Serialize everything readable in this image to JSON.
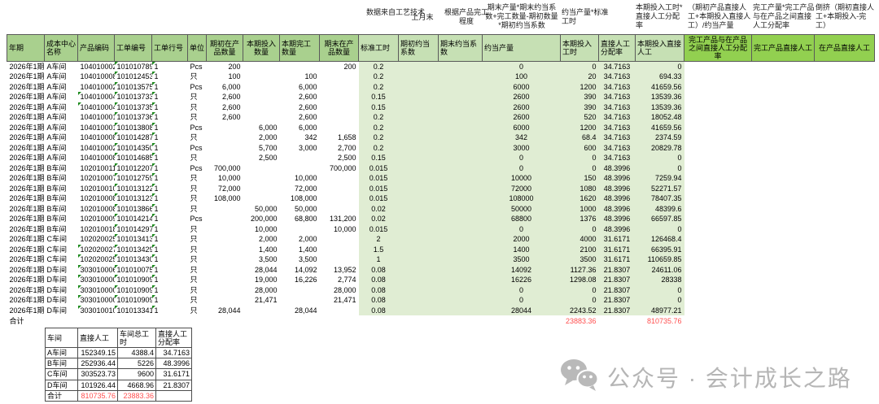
{
  "annotations": [
    "数据来自工艺技术",
    "上月末",
    "根据产品完工程度",
    "期末产量*期末约当系数+完工数量-期初数量*期初约当系数",
    "约当产量*标准工时",
    "本期投入工时*直接人工分配率",
    "（期初产品直接人工+本期投入直接人工）/约当产量",
    "完工产量*完工产品与在产品之间直接人工分配率",
    "倒挤（期初直接人工+本期投入-完工）"
  ],
  "colors": {
    "header_green": "#A9D08E",
    "header_light_green": "#C6E0B4",
    "header_bright_green": "#92D050",
    "data_area_green": "#E0EDD3",
    "total_red": "#FF5050",
    "watermark_gray": "#B5B5B5"
  },
  "main": {
    "headers": [
      "年期",
      "成本中心名称",
      "产品编码",
      "工单编号",
      "工单行号",
      "单位",
      "期初在产品数量",
      "本期投入数量",
      "本期完工数量",
      "期末在产品数量",
      "标准工时",
      "期初约当系数",
      "期末约当系数",
      "约当产量",
      "本期投入工时",
      "直接人工分配率",
      "本期投入直接人工",
      "完工产品与在产品之间直接人工分配率",
      "完工产品直接人工",
      "在产品直接人工"
    ],
    "rows": [
      [
        "2026年1期",
        "A车间",
        "104010002",
        "101010789",
        "1",
        "Pcs",
        "200",
        "",
        "",
        "200",
        "0.2",
        "",
        "",
        "0",
        "0",
        "34.7163",
        "0",
        "",
        "",
        ""
      ],
      [
        "2026年1期",
        "A车间",
        "104010008",
        "101012453",
        "1",
        "只",
        "100",
        "",
        "100",
        "",
        "0.2",
        "",
        "",
        "100",
        "20",
        "34.7163",
        "694.33",
        "",
        "",
        ""
      ],
      [
        "2026年1期",
        "A车间",
        "104010002",
        "101013575",
        "1",
        "Pcs",
        "6,000",
        "",
        "6,000",
        "",
        "0.2",
        "",
        "",
        "6000",
        "1200",
        "34.7163",
        "41659.56",
        "",
        "",
        ""
      ],
      [
        "2026年1期",
        "A车间",
        "104010004",
        "101013733",
        "1",
        "只",
        "2,600",
        "",
        "2,600",
        "",
        "0.15",
        "",
        "",
        "2600",
        "390",
        "34.7163",
        "13539.36",
        "",
        "",
        ""
      ],
      [
        "2026年1期",
        "A车间",
        "104010004",
        "101013735",
        "1",
        "只",
        "2,600",
        "",
        "2,600",
        "",
        "0.15",
        "",
        "",
        "2600",
        "390",
        "34.7163",
        "13539.36",
        "",
        "",
        ""
      ],
      [
        "2026年1期",
        "A车间",
        "104010001",
        "101013736",
        "1",
        "只",
        "2,600",
        "",
        "2,600",
        "",
        "0.2",
        "",
        "",
        "2600",
        "520",
        "34.7163",
        "18052.48",
        "",
        "",
        ""
      ],
      [
        "2026年1期",
        "A车间",
        "104010001",
        "101013808",
        "1",
        "Pcs",
        "",
        "6,000",
        "6,000",
        "",
        "0.2",
        "",
        "",
        "6000",
        "1200",
        "34.7163",
        "41659.56",
        "",
        "",
        ""
      ],
      [
        "2026年1期",
        "A车间",
        "104010008",
        "101014287",
        "1",
        "只",
        "",
        "2,000",
        "342",
        "1,658",
        "0.2",
        "",
        "",
        "342",
        "68.4",
        "34.7163",
        "2374.59",
        "",
        "",
        ""
      ],
      [
        "2026年1期",
        "A车间",
        "104010002",
        "101014350",
        "1",
        "Pcs",
        "",
        "5,700",
        "3,000",
        "2,700",
        "0.2",
        "",
        "",
        "3000",
        "600",
        "34.7163",
        "20829.78",
        "",
        "",
        ""
      ],
      [
        "2026年1期",
        "A车间",
        "104010008",
        "101014685",
        "1",
        "只",
        "",
        "2,500",
        "",
        "2,500",
        "0.15",
        "",
        "",
        "0",
        "0",
        "34.7163",
        "0",
        "",
        "",
        ""
      ],
      [
        "2026年1期",
        "B车间",
        "102010011",
        "101012207",
        "1",
        "Pcs",
        "700,000",
        "",
        "",
        "700,000",
        "0.015",
        "",
        "",
        "0",
        "0",
        "48.3996",
        "0",
        "",
        "",
        ""
      ],
      [
        "2026年1期",
        "B车间",
        "102010007",
        "101012759",
        "1",
        "只",
        "10,000",
        "",
        "10,000",
        "",
        "0.015",
        "",
        "",
        "10000",
        "150",
        "48.3996",
        "7259.94",
        "",
        "",
        ""
      ],
      [
        "2026年1期",
        "B车间",
        "102010010",
        "101013122",
        "1",
        "只",
        "72,000",
        "",
        "72,000",
        "",
        "0.015",
        "",
        "",
        "72000",
        "1080",
        "48.3996",
        "52271.57",
        "",
        "",
        ""
      ],
      [
        "2026年1期",
        "B车间",
        "102010008",
        "101013123",
        "1",
        "只",
        "108,000",
        "",
        "108,000",
        "",
        "0.015",
        "",
        "",
        "108000",
        "1620",
        "48.3996",
        "78407.35",
        "",
        "",
        ""
      ],
      [
        "2026年1期",
        "B车间",
        "102010008",
        "101013866",
        "1",
        "只",
        "",
        "50,000",
        "50,000",
        "",
        "0.02",
        "",
        "",
        "50000",
        "1000",
        "48.3996",
        "48399.6",
        "",
        "",
        ""
      ],
      [
        "2026年1期",
        "B车间",
        "102010009",
        "101014214",
        "1",
        "Pcs",
        "",
        "200,000",
        "68,800",
        "131,200",
        "0.02",
        "",
        "",
        "68800",
        "1376",
        "48.3996",
        "66597.85",
        "",
        "",
        ""
      ],
      [
        "2026年1期",
        "B车间",
        "102010018",
        "101014297",
        "1",
        "只",
        "",
        "10,000",
        "",
        "10,000",
        "0.015",
        "",
        "",
        "0",
        "0",
        "48.3996",
        "0",
        "",
        "",
        ""
      ],
      [
        "2026年1期",
        "C车间",
        "102020025",
        "101013413",
        "1",
        "只",
        "",
        "2,000",
        "2,000",
        "",
        "2",
        "",
        "",
        "2000",
        "4000",
        "31.6171",
        "126468.4",
        "",
        "",
        ""
      ],
      [
        "2026年1期",
        "C车间",
        "102020027",
        "101013429",
        "1",
        "只",
        "",
        "1,400",
        "1,400",
        "",
        "1.5",
        "",
        "",
        "1400",
        "2100",
        "31.6171",
        "66395.91",
        "",
        "",
        ""
      ],
      [
        "2026年1期",
        "C车间",
        "102020025",
        "101013430",
        "1",
        "只",
        "",
        "3,500",
        "3,500",
        "",
        "1",
        "",
        "",
        "3500",
        "3500",
        "31.6171",
        "110659.85",
        "",
        "",
        ""
      ],
      [
        "2026年1期",
        "D车间",
        "303010006",
        "101010075",
        "1",
        "只",
        "",
        "28,044",
        "14,092",
        "13,952",
        "0.08",
        "",
        "",
        "14092",
        "1127.36",
        "21.8307",
        "24611.06",
        "",
        "",
        ""
      ],
      [
        "2026年1期",
        "D车间",
        "303010000",
        "101010909",
        "1",
        "只",
        "",
        "19,000",
        "16,226",
        "2,774",
        "0.08",
        "",
        "",
        "16226",
        "1298.08",
        "21.8307",
        "28338",
        "",
        "",
        ""
      ],
      [
        "2026年1期",
        "D车间",
        "303010000",
        "101010909",
        "1",
        "只",
        "",
        "28,000",
        "",
        "28,000",
        "0.08",
        "",
        "",
        "0",
        "0",
        "21.8307",
        "0",
        "",
        "",
        ""
      ],
      [
        "2026年1期",
        "D车间",
        "303010000",
        "101010909",
        "1",
        "只",
        "",
        "21,471",
        "",
        "21,471",
        "0.08",
        "",
        "",
        "0",
        "0",
        "21.8307",
        "0",
        "",
        "",
        ""
      ],
      [
        "2026年1期",
        "D车间",
        "303010010",
        "101013341",
        "1",
        "只",
        "28,044",
        "",
        "28,044",
        "",
        "0.08",
        "",
        "",
        "28044",
        "2243.52",
        "21.8307",
        "48977.21",
        "",
        "",
        ""
      ]
    ],
    "marker_rows": [
      4,
      5,
      19,
      20,
      21,
      22,
      23,
      24,
      25
    ],
    "totals": {
      "label": "合计",
      "input_hours": "23883.36",
      "input_labor": "810735.76"
    }
  },
  "summary": {
    "headers": [
      "车间",
      "直接人工",
      "车间总工时",
      "直接人工分配率"
    ],
    "rows": [
      [
        "A车间",
        "152349.15",
        "4388.4",
        "34.7163"
      ],
      [
        "B车间",
        "252936.44",
        "5226",
        "48.3996"
      ],
      [
        "C车间",
        "303523.73",
        "9600",
        "31.6171"
      ],
      [
        "D车间",
        "101926.44",
        "4668.96",
        "21.8307"
      ],
      [
        "合计",
        "810735.76",
        "23883.36",
        ""
      ]
    ],
    "totals_label": "合计"
  },
  "watermark": {
    "icon": "wechat-icon",
    "text": "公众号 · 会计成长之路"
  }
}
